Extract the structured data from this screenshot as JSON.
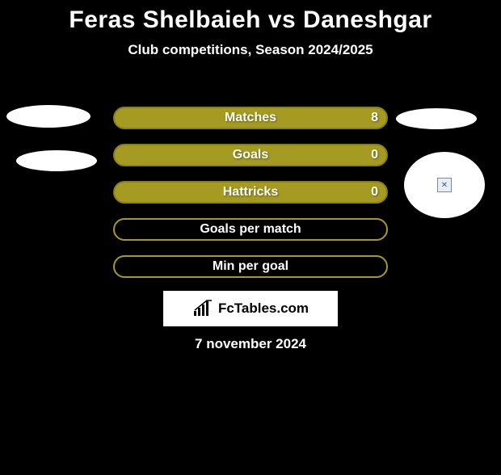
{
  "title": {
    "text": "Feras Shelbaieh vs Daneshgar",
    "fontsize": 30,
    "color": "#ffffff"
  },
  "subtitle": {
    "text": "Club competitions, Season 2024/2025",
    "fontsize": 17,
    "color": "#ffffff"
  },
  "stats": {
    "label_fontsize": 16,
    "label_color": "#ffffff",
    "value_fontsize": 16,
    "value_color": "#ffffff",
    "bar_fill": "#a59a22",
    "bar_border": "#8a8018",
    "empty_fill": "transparent",
    "empty_border": "#a59a22",
    "rows": [
      {
        "label": "Matches",
        "value_right": "8",
        "filled": true
      },
      {
        "label": "Goals",
        "value_right": "0",
        "filled": true
      },
      {
        "label": "Hattricks",
        "value_right": "0",
        "filled": true
      },
      {
        "label": "Goals per match",
        "value_right": "",
        "filled": false
      },
      {
        "label": "Min per goal",
        "value_right": "",
        "filled": false
      }
    ]
  },
  "brand": {
    "text": "FcTables.com",
    "fontsize": 17
  },
  "date": {
    "text": "7 november 2024",
    "fontsize": 17,
    "color": "#ffffff"
  },
  "colors": {
    "background": "#000000",
    "ellipse_fill": "#ffffff"
  }
}
